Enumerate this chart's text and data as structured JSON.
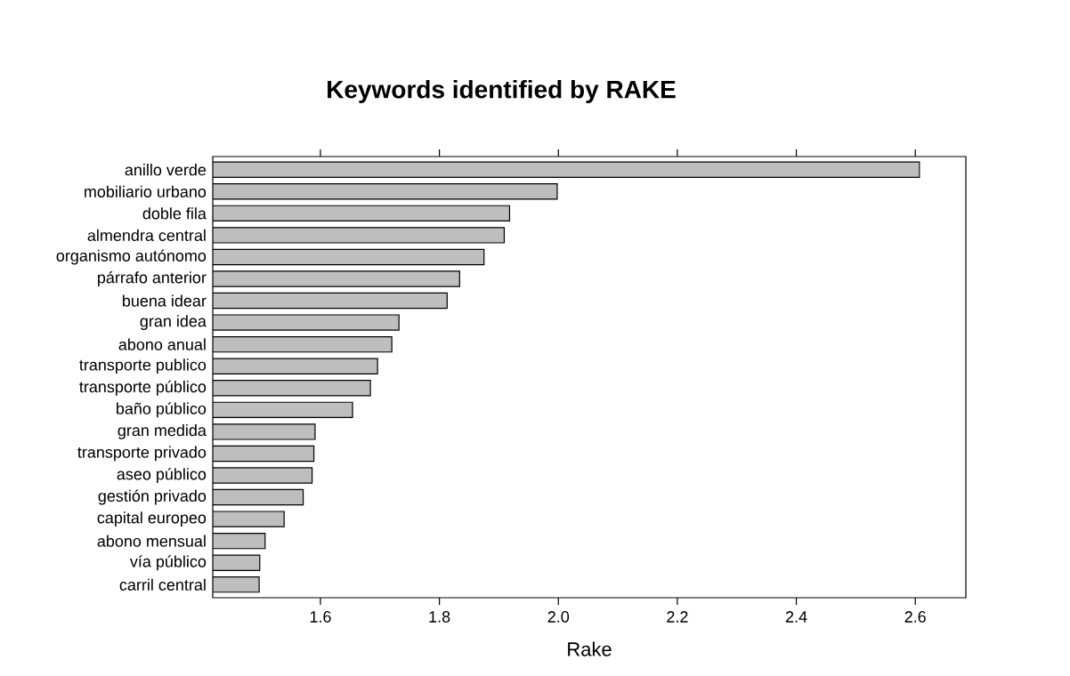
{
  "chart_data": {
    "type": "bar",
    "orientation": "horizontal",
    "title": "Keywords identified by RAKE",
    "xlabel": "Rake",
    "categories": [
      "anillo verde",
      "mobiliario urbano",
      "doble fila",
      "almendra central",
      "organismo autónomo",
      "párrafo anterior",
      "buena idear",
      "gran idea",
      "abono anual",
      "transporte publico",
      "transporte público",
      "baño público",
      "gran medida",
      "transporte privado",
      "aseo público",
      "gestión privado",
      "capital europeo",
      "abono mensual",
      "vía público",
      "carril central"
    ],
    "values": [
      2.607,
      1.998,
      1.918,
      1.909,
      1.875,
      1.834,
      1.813,
      1.732,
      1.72,
      1.696,
      1.684,
      1.654,
      1.591,
      1.589,
      1.586,
      1.571,
      1.539,
      1.507,
      1.498,
      1.497
    ],
    "color": "#bebebe",
    "xlim": [
      1.419,
      2.685
    ],
    "xticks": [
      {
        "value": 1.6,
        "label": "1.6"
      },
      {
        "value": 1.8,
        "label": "1.8"
      },
      {
        "value": 2.0,
        "label": "2.0"
      },
      {
        "value": 2.2,
        "label": "2.2"
      },
      {
        "value": 2.4,
        "label": "2.4"
      },
      {
        "value": 2.6,
        "label": "2.6"
      }
    ]
  }
}
